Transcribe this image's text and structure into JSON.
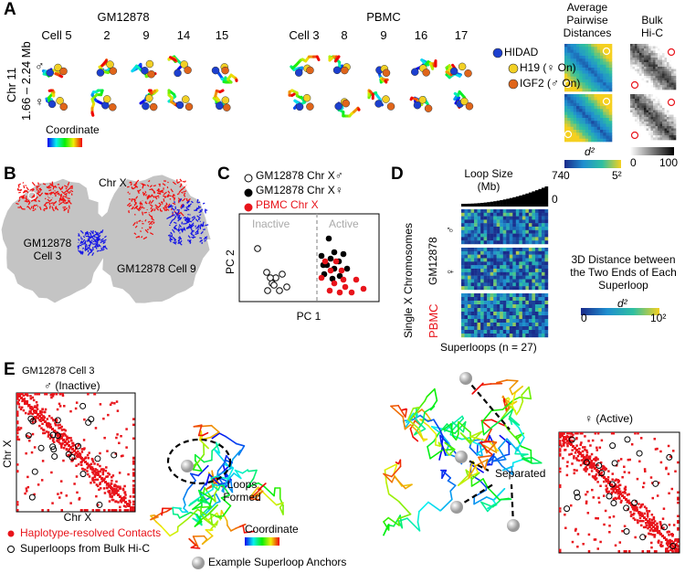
{
  "panel_a": {
    "label": "A",
    "groups": [
      "GM12878",
      "PBMC"
    ],
    "gm_cells": [
      "Cell 5",
      "2",
      "9",
      "14",
      "15"
    ],
    "pbmc_cells": [
      "Cell 3",
      "8",
      "9",
      "16",
      "17"
    ],
    "row_title": "Chr 11",
    "row_range": "1.66 – 2.24 Mb",
    "male": "♂",
    "female": "♀",
    "colorbar_label": "Coordinate",
    "distance_title": "Average Pairwise Distances",
    "hic_title": "Bulk Hi-C",
    "legend": [
      "HIDAD",
      "H19 (♀ On)",
      "IGF2 (♂ On)"
    ],
    "distance_scale": {
      "label": "d²",
      "min": 0,
      "max": "5²"
    },
    "hic_scale": {
      "min": 0,
      "max": 100
    }
  },
  "panel_b": {
    "label": "B",
    "title": "Chr X",
    "cell_a": "GM12878 Cell 3",
    "cell_b": "GM12878 Cell 9"
  },
  "panel_c": {
    "label": "C",
    "legend": [
      "GM12878 Chr X♂",
      "GM12878 Chr X♀",
      "PBMC Chr X"
    ],
    "inactive": "Inactive",
    "active": "Active",
    "y_label": "PC 2",
    "x_label": "PC 1"
  },
  "panel_d": {
    "label": "D",
    "loop_size": "Loop Size (Mb)",
    "loop_max": 74,
    "loop_min": 0,
    "y_title": "Single X Chromosomes",
    "gm": "GM12878",
    "male": "♂",
    "female": "♀",
    "pbmc": "PBMC",
    "x_label": "Superloops (n = 27)",
    "scale_title": "3D Distance between the Two Ends of Each Superloop",
    "scale_label": "d²",
    "scale_min": 0,
    "scale_max": "10²"
  },
  "panel_e": {
    "label": "E",
    "cell": "GM12878 Cell 3",
    "male": "♂ (Inactive)",
    "female": "♀ (Active)",
    "axis_y": "Chr X",
    "axis_x": "Chr X",
    "loops": "Loops Formed",
    "separated": "Separated",
    "colorbar_label": "Coordinate",
    "legend": [
      "Haplotype-resolved Contacts",
      "Superloops from Bulk Hi-C",
      "Example Superloop Anchors"
    ]
  }
}
